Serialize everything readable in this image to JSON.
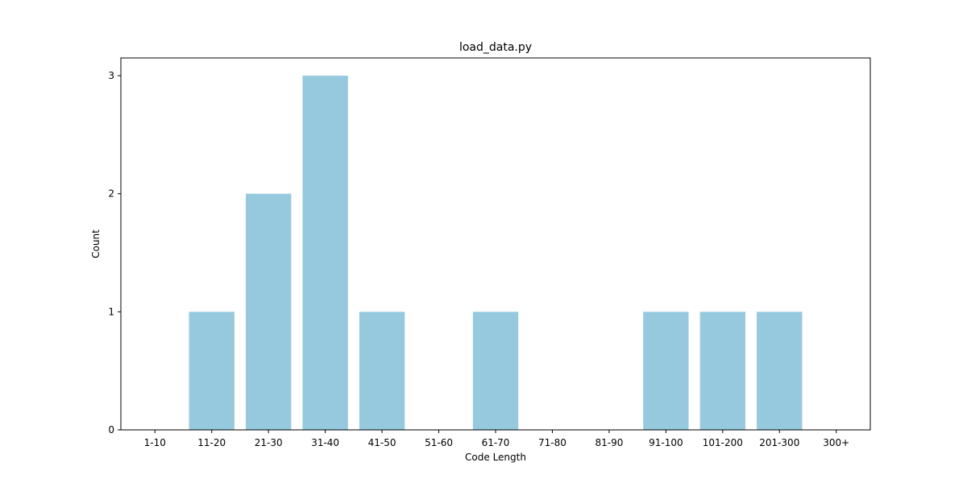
{
  "chart_data": {
    "type": "bar",
    "title": "load_data.py",
    "xlabel": "Code Length",
    "ylabel": "Count",
    "categories": [
      "1-10",
      "11-20",
      "21-30",
      "31-40",
      "41-50",
      "51-60",
      "61-70",
      "71-80",
      "81-90",
      "91-100",
      "101-200",
      "201-300",
      "300+"
    ],
    "values": [
      0,
      1,
      2,
      3,
      1,
      0,
      1,
      0,
      0,
      1,
      1,
      1,
      0
    ],
    "ylim": [
      0,
      3.15
    ],
    "yticks": [
      0,
      1,
      2,
      3
    ],
    "grid": false,
    "bar_color": "#96c9de"
  }
}
